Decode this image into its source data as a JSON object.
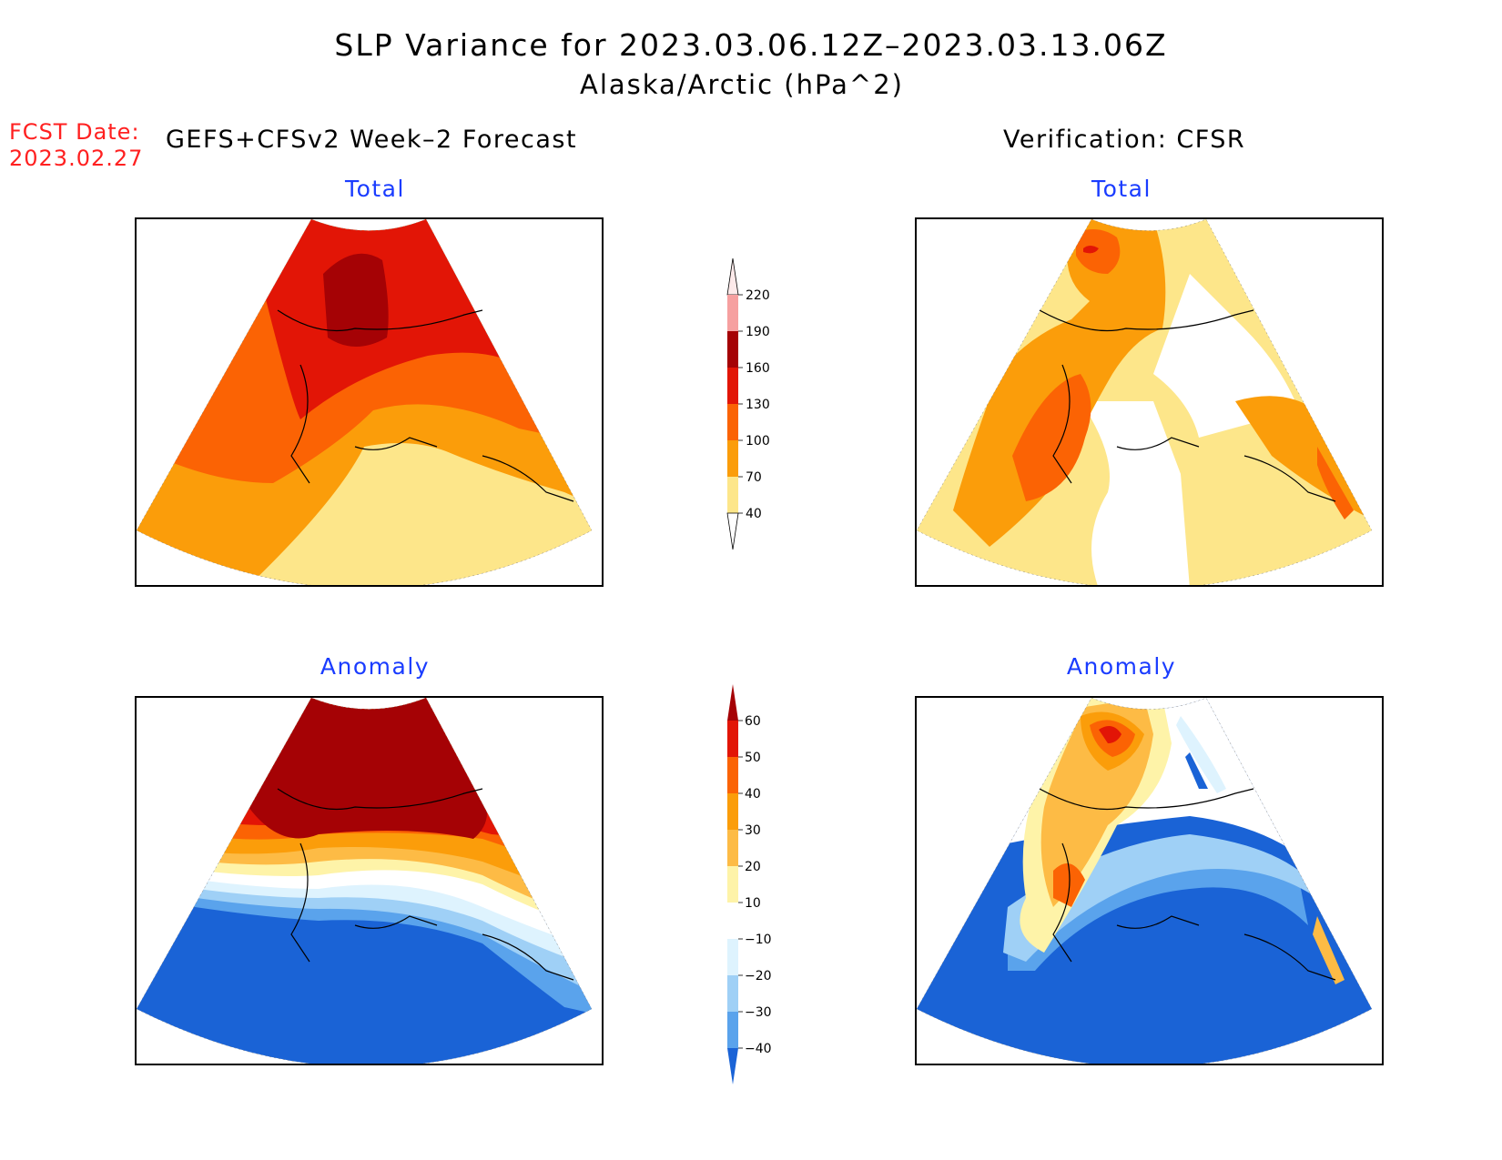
{
  "title": {
    "line1": "SLP Variance for 2023.03.06.12Z–2023.03.13.06Z",
    "line2": "Alaska/Arctic (hPa^2)"
  },
  "forecast": {
    "date_label": "FCST Date:",
    "date_value": "2023.02.27"
  },
  "left_header": "GEFS+CFSv2 Week–2 Forecast",
  "right_header": "Verification: CFSR",
  "panels": {
    "top_left": "Total",
    "top_right": "Total",
    "bottom_left": "Anomaly",
    "bottom_right": "Anomaly"
  },
  "colorbar_total": {
    "levels": [
      "40",
      "70",
      "100",
      "130",
      "160",
      "190",
      "220"
    ],
    "colors": [
      "#fde68a",
      "#fb9d0a",
      "#fb6304",
      "#e21506",
      "#a50205",
      "#f6a0a0",
      "#fdeaea"
    ]
  },
  "colorbar_anomaly": {
    "levels": [
      "60",
      "50",
      "40",
      "30",
      "20",
      "10",
      "−10",
      "−20",
      "−30",
      "−40"
    ],
    "colors_top_to_bottom": [
      "#a50205",
      "#e21506",
      "#fb6304",
      "#fb9d0a",
      "#fdbb45",
      "#fef3a8",
      "#ffffff",
      "#def3fe",
      "#9fd0f6",
      "#5aa3ec",
      "#1a63d6"
    ]
  }
}
